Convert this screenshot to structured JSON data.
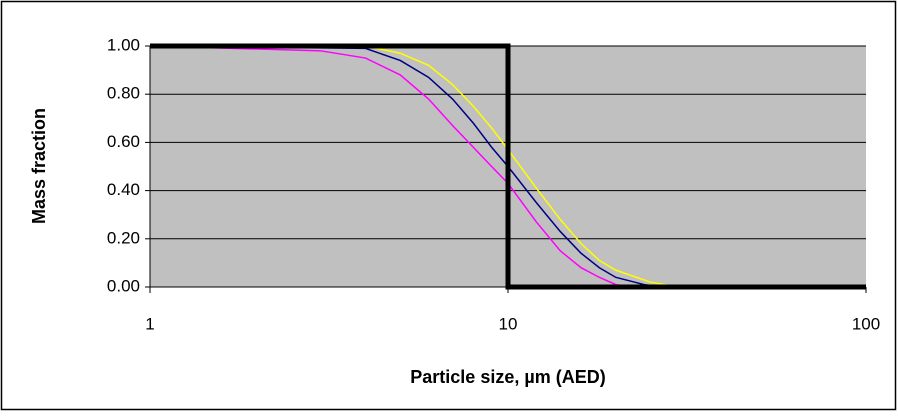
{
  "chart_data": {
    "type": "line",
    "xlabel": "Particle size, µm (AED)",
    "ylabel": "Mass fraction",
    "xscale": "log",
    "xlim": [
      1,
      100
    ],
    "xticks": [
      1,
      10,
      100
    ],
    "ylim": [
      0,
      1
    ],
    "yticks": [
      {
        "value": 0,
        "label": "0.00"
      },
      {
        "value": 0.2,
        "label": "0.20"
      },
      {
        "value": 0.4,
        "label": "0.40"
      },
      {
        "value": 0.6,
        "label": "0.60"
      },
      {
        "value": 0.8,
        "label": "0.80"
      },
      {
        "value": 1,
        "label": "1.00"
      }
    ],
    "grid": true,
    "series": [
      {
        "color": "#ffff00",
        "width": 1.5,
        "x": [
          1,
          4,
          5,
          6,
          7,
          8,
          9,
          10,
          12,
          14,
          16,
          18,
          20,
          25,
          30
        ],
        "values": [
          1,
          1,
          0.97,
          0.92,
          0.84,
          0.75,
          0.66,
          0.57,
          0.41,
          0.28,
          0.18,
          0.11,
          0.07,
          0.02,
          0
        ]
      },
      {
        "color": "#000080",
        "width": 1.5,
        "x": [
          1,
          4,
          5,
          6,
          7,
          8,
          9,
          10,
          12,
          14,
          16,
          18,
          20,
          24,
          27
        ],
        "values": [
          1,
          0.99,
          0.94,
          0.87,
          0.78,
          0.68,
          0.58,
          0.5,
          0.35,
          0.23,
          0.14,
          0.08,
          0.04,
          0.01,
          0
        ]
      },
      {
        "color": "#ff00ff",
        "width": 1.5,
        "x": [
          1,
          3,
          4,
          5,
          6,
          7,
          8,
          9,
          10,
          12,
          14,
          16,
          18,
          20,
          22
        ],
        "values": [
          1,
          0.98,
          0.95,
          0.88,
          0.78,
          0.67,
          0.58,
          0.5,
          0.43,
          0.27,
          0.15,
          0.08,
          0.04,
          0.01,
          0
        ]
      },
      {
        "color": "#000000",
        "width": 5,
        "x": [
          1,
          10,
          10,
          100
        ],
        "values": [
          1,
          1,
          0,
          0
        ]
      }
    ]
  }
}
